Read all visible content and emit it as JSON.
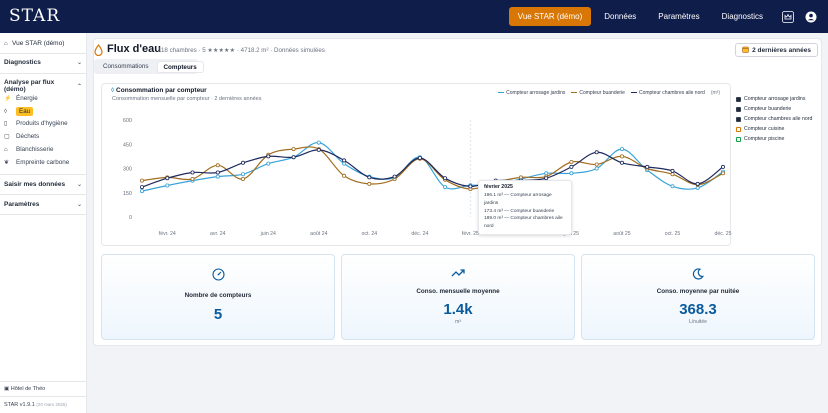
{
  "app": {
    "logo": "STAR",
    "nav": [
      "Vue STAR (démo)",
      "Données",
      "Paramètres",
      "Diagnostics"
    ],
    "active_nav": "Vue STAR (démo)"
  },
  "sidebar": {
    "top_item": "Vue STAR (démo)",
    "sections": {
      "diagnostics": "Diagnostics",
      "analyse": "Analyse par flux (démo)",
      "saisir": "Saisir mes données",
      "parametres": "Paramètres"
    },
    "flux_items": [
      {
        "label": "Énergie",
        "icon": "bolt-icon"
      },
      {
        "label": "Eau",
        "icon": "drop-icon",
        "active": true
      },
      {
        "label": "Produits d'hygiène",
        "icon": "bottle-icon"
      },
      {
        "label": "Déchets",
        "icon": "trash-icon"
      },
      {
        "label": "Blanchisserie",
        "icon": "shirt-icon"
      },
      {
        "label": "Empreinte carbone",
        "icon": "leaf-icon"
      }
    ],
    "hotel": "Hôtel de Théo",
    "version": "STAR v1.9.1",
    "version_date": "(20 mars 2026)"
  },
  "page": {
    "title": "Flux d'eau",
    "subtitle": "118 chambres · 5 ★★★★★ · 4718.2 m² · Données simulées",
    "period": "2 dernières années",
    "tabs": [
      "Consommations",
      "Compteurs"
    ],
    "active_tab": "Compteurs"
  },
  "chart": {
    "title": "Consommation par compteur",
    "subtitle": "Consommation mensuelle par compteur · 2 dernières années",
    "unit": "(m³)",
    "tooltip": {
      "title": "février 2025",
      "rows": [
        "196.1 m³ — Compteur arrosage jardins",
        "173.4 m³ — Compteur buanderie",
        "189.0 m³ — Compteur chambres aile nord"
      ]
    }
  },
  "meters": [
    {
      "label": "Compteur arrosage jardins",
      "checked": true
    },
    {
      "label": "Compteur buanderie",
      "checked": true
    },
    {
      "label": "Compteur chambres aile nord",
      "checked": true
    },
    {
      "label": "Compteur cuisine",
      "checked": false
    },
    {
      "label": "Compteur piscine",
      "checked": false
    }
  ],
  "stats": [
    {
      "label": "Nombre de compteurs",
      "value": "5",
      "unit": "",
      "icon": "gauge-icon"
    },
    {
      "label": "Conso. mensuelle moyenne",
      "value": "1.4k",
      "unit": "m³",
      "icon": "trend-icon"
    },
    {
      "label": "Conso. moyenne par nuitée",
      "value": "368.3",
      "unit": "L/nuitée",
      "icon": "moon-icon"
    }
  ],
  "colors": {
    "navy": "#0f1d4a",
    "accent": "#d97706",
    "arrosage": "#38a3d8",
    "buanderie": "#a16d1f",
    "aile_nord": "#1e2a5e",
    "stat_value": "#0b5a9c"
  },
  "chart_data": {
    "type": "line",
    "title": "Consommation par compteur",
    "ylabel": "m³",
    "ylim": [
      0,
      600
    ],
    "yticks": [
      0,
      150,
      300,
      450,
      600
    ],
    "xtick_labels": [
      "févr. 24",
      "avr. 24",
      "juin 24",
      "août 24",
      "oct. 24",
      "déc. 24",
      "févr. 25",
      "avr. 25",
      "juin 25",
      "août 25",
      "oct. 25",
      "déc. 25"
    ],
    "x": [
      "2024-01",
      "2024-02",
      "2024-03",
      "2024-04",
      "2024-05",
      "2024-06",
      "2024-07",
      "2024-08",
      "2024-09",
      "2024-10",
      "2024-11",
      "2024-12",
      "2025-01",
      "2025-02",
      "2025-03",
      "2025-04",
      "2025-05",
      "2025-06",
      "2025-07",
      "2025-08",
      "2025-09",
      "2025-10",
      "2025-11",
      "2025-12"
    ],
    "series": [
      {
        "name": "Compteur arrosage jardins",
        "color": "#38a3d8",
        "values": [
          160,
          195,
          225,
          250,
          265,
          330,
          370,
          460,
          330,
          250,
          245,
          370,
          185,
          196,
          200,
          235,
          270,
          270,
          300,
          420,
          290,
          190,
          180,
          280
        ]
      },
      {
        "name": "Compteur buanderie",
        "color": "#a16d1f",
        "values": [
          225,
          245,
          235,
          320,
          235,
          385,
          420,
          420,
          255,
          205,
          235,
          360,
          230,
          173,
          215,
          245,
          250,
          340,
          325,
          375,
          300,
          265,
          200,
          270
        ]
      },
      {
        "name": "Compteur chambres aile nord",
        "color": "#1e2a5e",
        "values": [
          185,
          240,
          275,
          275,
          335,
          375,
          370,
          415,
          350,
          245,
          250,
          365,
          240,
          189,
          225,
          225,
          240,
          310,
          400,
          335,
          310,
          285,
          205,
          310
        ]
      }
    ],
    "legend": "top-right",
    "grid": false
  }
}
